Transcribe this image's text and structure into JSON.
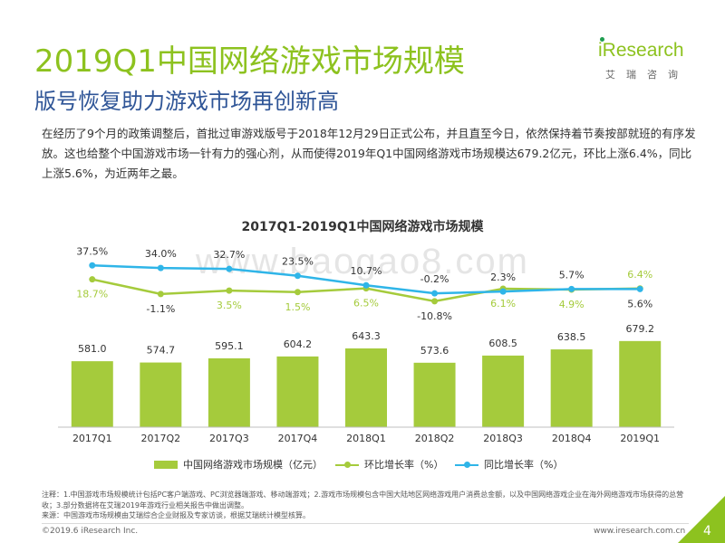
{
  "title": "2019Q1中国网络游戏市场规模",
  "subtitle": "版号恢复助力游戏市场再创新高",
  "paragraph": "在经历了9个月的政策调整后，首批过审游戏版号于2018年12月29日正式公布，并且直至今日，依然保持着节奏按部就班的有序发放。这也给整个中国游戏市场一针有力的强心剂，从而使得2019年Q1中国网络游戏市场规模达679.2亿元，环比上涨6.4%，同比上涨5.6%，为近两年之最。",
  "logo": {
    "main": "iResearch",
    "sub": "艾瑞咨询"
  },
  "watermark": "www.baogao8.com",
  "colors": {
    "brand_green": "#8dc21f",
    "bar": "#a5cb3c",
    "qoq_line": "#a5cb3c",
    "yoy_line": "#2fb5e8",
    "subtitle_blue": "#2f5597"
  },
  "chart_data": {
    "type": "bar",
    "title": "2017Q1-2019Q1中国网络游戏市场规模",
    "categories": [
      "2017Q1",
      "2017Q2",
      "2017Q3",
      "2017Q4",
      "2018Q1",
      "2018Q2",
      "2018Q3",
      "2018Q4",
      "2019Q1"
    ],
    "series": [
      {
        "name": "中国网络游戏市场规模（亿元）",
        "type": "bar",
        "values": [
          581.0,
          574.7,
          595.1,
          604.2,
          643.3,
          573.6,
          608.5,
          638.5,
          679.2
        ],
        "labels": [
          "581.0",
          "574.7",
          "595.1",
          "604.2",
          "643.3",
          "573.6",
          "608.5",
          "638.5",
          "679.2"
        ]
      },
      {
        "name": "环比增长率（%）",
        "type": "line",
        "values": [
          18.7,
          -1.1,
          3.5,
          1.5,
          6.5,
          -10.8,
          6.1,
          4.9,
          6.4
        ],
        "labels": [
          "18.7%",
          "-1.1%",
          "3.5%",
          "1.5%",
          "6.5%",
          "-10.8%",
          "6.1%",
          "4.9%",
          "6.4%"
        ]
      },
      {
        "name": "同比增长率（%）",
        "type": "line",
        "values": [
          37.5,
          34.0,
          32.7,
          23.5,
          10.7,
          -0.2,
          2.3,
          5.7,
          5.6
        ],
        "labels": [
          "37.5%",
          "34.0%",
          "32.7%",
          "23.5%",
          "10.7%",
          "-0.2%",
          "2.3%",
          "5.7%",
          "5.6%"
        ]
      }
    ],
    "legend_position": "bottom",
    "grid": false
  },
  "legend": {
    "bar": "中国网络游戏市场规模（亿元）",
    "qoq": "环比增长率（%）",
    "yoy": "同比增长率（%）"
  },
  "notes": {
    "line1": "注释：1.中国游戏市场规模统计包括PC客户端游戏、PC浏览器端游戏、移动端游戏；2.游戏市场规模包含中国大陆地区网络游戏用户消费总金额，以及中国网络游戏企业在海外网络游戏市场获得的总营收；3.部分数据将在艾瑞2019年游戏行业相关报告中做出调整。",
    "line2": "来源：中国游戏市场规模由艾瑞综合企业财报及专家访谈，根据艾瑞统计模型核算。"
  },
  "footer": {
    "copyright": "©2019.6 iResearch Inc.",
    "site": "www.iresearch.com.cn",
    "page": "4"
  }
}
